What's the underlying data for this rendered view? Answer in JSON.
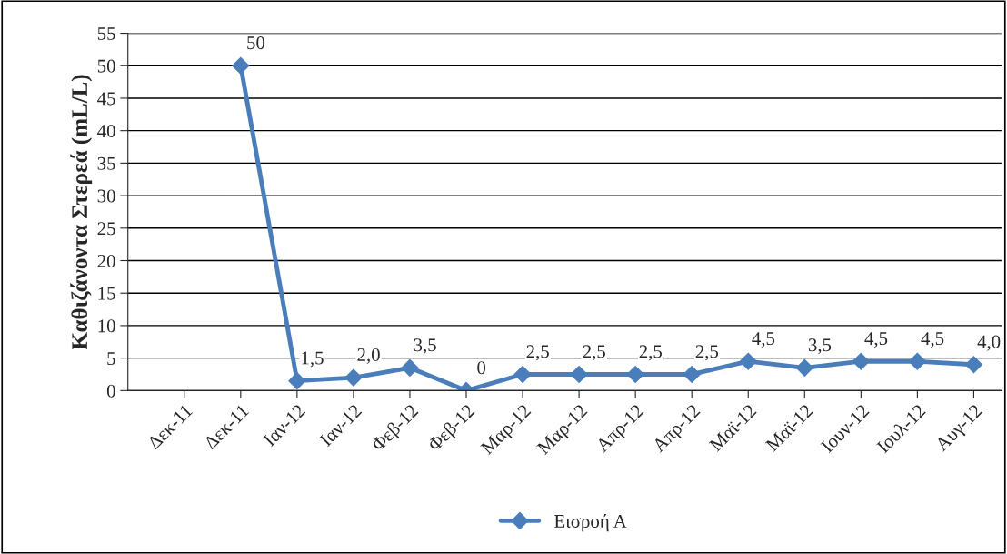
{
  "chart_data": {
    "type": "line",
    "ylabel": "Καθιζάνοντα Στερεά (mL/L)",
    "categories": [
      "Δεκ-11",
      "Δεκ-11",
      "Ιαν-12",
      "Ιαν-12",
      "Φεβ-12",
      "Φεβ-12",
      "Μαρ-12",
      "Μαρ-12",
      "Απρ-12",
      "Απρ-12",
      "Μαϊ-12",
      "Μαϊ-12",
      "Ιουν-12",
      "Ιουλ-12",
      "Αυγ-12"
    ],
    "series": [
      {
        "name": "Εισροή Α",
        "color": "#4a7ebb",
        "values": [
          null,
          50,
          1.5,
          2.0,
          3.5,
          0,
          2.5,
          2.5,
          2.5,
          2.5,
          4.5,
          3.5,
          4.5,
          4.5,
          4.0
        ],
        "value_labels": [
          null,
          "50",
          "1,5",
          "2,0",
          "3,5",
          "0",
          "2,5",
          "2,5",
          "2,5",
          "2,5",
          "4,5",
          "3,5",
          "4,5",
          "4,5",
          "4,0"
        ]
      }
    ],
    "ylim": [
      0,
      55
    ],
    "yticks": [
      0,
      5,
      10,
      15,
      20,
      25,
      30,
      35,
      40,
      45,
      50,
      55
    ],
    "grid": "y",
    "legend": "bottom",
    "marker": "diamond",
    "line_style": "solid"
  }
}
